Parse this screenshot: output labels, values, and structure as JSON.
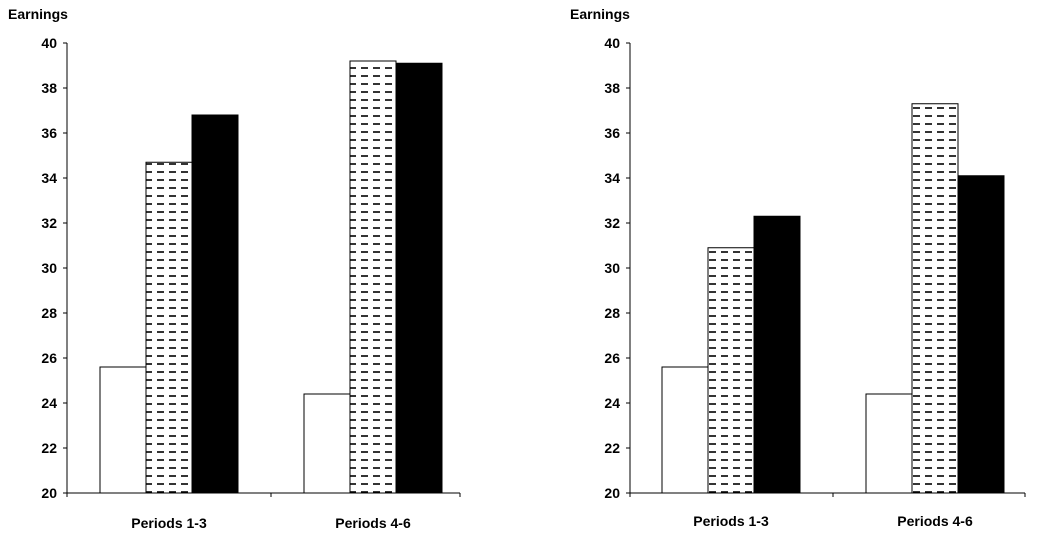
{
  "chart_data": [
    {
      "type": "bar",
      "ylabel": "Earnings",
      "ylim": [
        20,
        40
      ],
      "yticks": [
        20,
        22,
        24,
        26,
        28,
        30,
        32,
        34,
        36,
        38,
        40
      ],
      "categories": [
        "Periods 1-3",
        "Periods 4-6"
      ],
      "series": [
        {
          "values": [
            25.6,
            24.4
          ],
          "fill": "white"
        },
        {
          "values": [
            34.7,
            39.2
          ],
          "fill": "dashed-pattern"
        },
        {
          "values": [
            36.8,
            39.1
          ],
          "fill": "black"
        }
      ],
      "grid": false,
      "legend": "none"
    },
    {
      "type": "bar",
      "ylabel": "Earnings",
      "ylim": [
        20,
        40
      ],
      "yticks": [
        20,
        22,
        24,
        26,
        28,
        30,
        32,
        34,
        36,
        38,
        40
      ],
      "categories": [
        "Periods 1-3",
        "Periods 4-6"
      ],
      "series": [
        {
          "values": [
            25.6,
            24.4
          ],
          "fill": "white"
        },
        {
          "values": [
            30.9,
            37.3
          ],
          "fill": "dashed-pattern"
        },
        {
          "values": [
            32.3,
            34.1
          ],
          "fill": "black"
        }
      ],
      "grid": false,
      "legend": "none"
    }
  ]
}
